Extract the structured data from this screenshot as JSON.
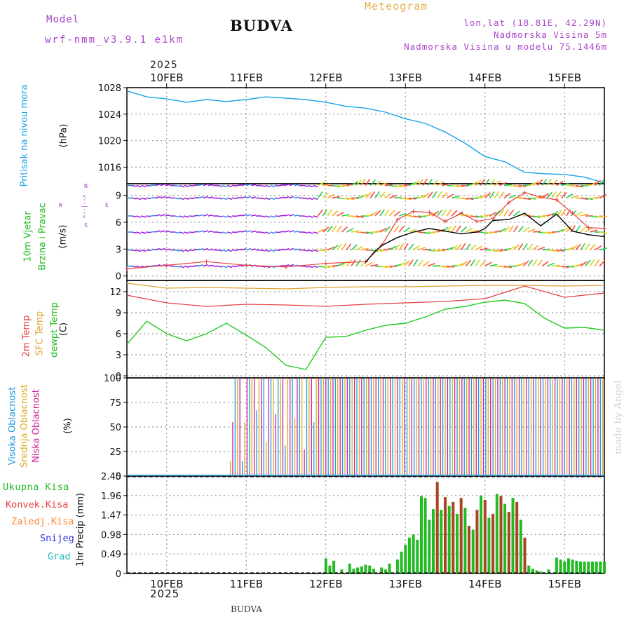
{
  "header": {
    "model_label": "Model",
    "model_name": "wrf-nmm_v3.9.1 e1km",
    "station": "BUDVA",
    "meteogram": "Meteogram",
    "lonlat": "lon,lat (18.81E, 42.29N)",
    "altitude": "Nadmorska Visina 5m",
    "model_altitude": "Nadmorska Visina u modelu 75.1446m"
  },
  "top_axis": {
    "year": "2025"
  },
  "bottom_axis": {
    "year": "2025",
    "footer_station": "BUDVA"
  },
  "watermark": "made by Angel",
  "panel_labels": {
    "pressure": {
      "title": "Pritisak na nivou mora",
      "unit": "(hPa)"
    },
    "wind": {
      "line1": "10m Vjetar",
      "line2": "Brzina i Pravac",
      "unit": "(m/s)",
      "compass_n": "N",
      "compass_w": "W",
      "compass_e": "E",
      "compass_s": "S",
      "compass_arrows_top": "<--|-->",
      "compass_arrows_bottom": "<--|-->"
    },
    "temp": {
      "t2m": "2m Temp",
      "sfc": "SFC Temp",
      "dew": "dewpt Temp",
      "unit": "(C)"
    },
    "cloud": {
      "high": "Visoka Oblacnost",
      "mid": "Srednja Oblacnost",
      "low": "Niska Oblacnost",
      "unit": "(%)"
    },
    "precip": {
      "total": "Ukupna Kisa",
      "conv": "Konvek.Kisa",
      "frz": "Zaledj.Kisa",
      "snow": "Snijeg",
      "grad": "Grad",
      "unit": "1hr Precip (mm)"
    }
  },
  "colors": {
    "pressure": "#1aa3e8",
    "t2m": "#e84040",
    "sfc": "#e0a030",
    "dew": "#22cc22",
    "wind_speed": "#000000",
    "gust": "#e84040",
    "high_cloud": "#2299dd",
    "mid_cloud": "#ddaa22",
    "low_cloud": "#cc2299",
    "precip_total": "#22bb22",
    "precip_conv": "#aa4422",
    "label_total": "#22bb22",
    "label_conv": "#e84040",
    "label_frz": "#ff8833",
    "label_snow": "#3333dd",
    "label_grad": "#22bbbb",
    "model_text": "#aa44cc",
    "meteogram_text": "#e8b050",
    "info_text": "#aa44cc"
  },
  "chart_data": [
    {
      "type": "line",
      "panel": "pressure",
      "x_unit": "day (fractional, from 2025-02-09 12:00)",
      "x_ticks": [
        "10FEB",
        "11FEB",
        "12FEB",
        "13FEB",
        "14FEB",
        "15FEB"
      ],
      "ylim": [
        1013.5,
        1028
      ],
      "y_ticks": [
        1016,
        1020,
        1024,
        1028
      ],
      "series": [
        {
          "x": [
            0,
            0.25,
            0.5,
            0.75,
            1.0,
            1.25,
            1.5,
            1.75,
            2.0,
            2.25,
            2.5,
            2.75,
            3.0,
            3.25,
            3.5,
            3.75,
            4.0,
            4.25,
            4.5,
            4.75,
            5.0,
            5.25,
            5.5,
            5.75,
            6.0
          ],
          "values": [
            1027.5,
            1026.6,
            1026.3,
            1025.8,
            1026.2,
            1025.9,
            1026.2,
            1026.6,
            1026.4,
            1026.2,
            1025.8,
            1025.2,
            1024.9,
            1024.3,
            1023.3,
            1022.6,
            1021.3,
            1019.6,
            1017.6,
            1016.8,
            1015.2,
            1015.0,
            1014.9,
            1014.5,
            1013.6
          ]
        }
      ]
    },
    {
      "type": "line",
      "panel": "wind",
      "ylim": [
        -0.5,
        10.3
      ],
      "y_ticks": [
        0,
        3,
        6,
        9
      ],
      "series": [
        {
          "name": "wind speed",
          "x": [
            3.0,
            3.1,
            3.2,
            3.4,
            3.6,
            3.8,
            4.0,
            4.2,
            4.4,
            4.5,
            4.6,
            4.8,
            5.0,
            5.2,
            5.4,
            5.6,
            5.8,
            6.0
          ],
          "values": [
            1.5,
            2.6,
            3.4,
            4.3,
            4.9,
            5.3,
            5.0,
            4.7,
            4.9,
            5.3,
            6.2,
            6.3,
            7.0,
            5.6,
            6.9,
            5.0,
            4.6,
            4.4
          ]
        },
        {
          "name": "gust",
          "x": [
            0,
            0.5,
            1.0,
            1.5,
            2.0,
            2.5,
            3.0,
            3.2,
            3.4,
            3.6,
            3.8,
            4.0,
            4.2,
            4.4,
            4.6,
            4.8,
            5.0,
            5.2,
            5.4,
            5.6,
            5.8,
            6.0
          ],
          "values": [
            0.8,
            1.2,
            1.6,
            1.2,
            1.0,
            1.4,
            1.6,
            3.4,
            6.3,
            7.2,
            7.1,
            6.1,
            7.0,
            6.1,
            6.4,
            8.2,
            9.3,
            8.8,
            8.5,
            7.0,
            5.4,
            5.3
          ]
        }
      ]
    },
    {
      "type": "line",
      "panel": "temperature",
      "ylim": [
        -0.3,
        13.6
      ],
      "y_ticks": [
        0,
        3,
        6,
        9,
        12
      ],
      "series": [
        {
          "name": "2m Temp",
          "x": [
            0,
            0.5,
            1.0,
            1.5,
            2.0,
            2.5,
            3.0,
            3.5,
            4.0,
            4.5,
            5.0,
            5.5,
            6.0
          ],
          "values": [
            11.5,
            10.4,
            9.9,
            10.2,
            10.1,
            9.9,
            10.2,
            10.4,
            10.6,
            11.0,
            12.8,
            11.2,
            11.8
          ]
        },
        {
          "name": "SFC Temp",
          "x": [
            0,
            0.5,
            1.0,
            1.5,
            2.0,
            2.5,
            3.0,
            3.5,
            4.0,
            4.5,
            5.0,
            5.5,
            6.0
          ],
          "values": [
            13.2,
            12.5,
            12.6,
            12.5,
            12.4,
            12.6,
            12.7,
            12.7,
            12.8,
            12.9,
            12.9,
            12.8,
            12.9
          ]
        },
        {
          "name": "dewpt Temp",
          "x": [
            0,
            0.25,
            0.5,
            0.75,
            1.0,
            1.25,
            1.5,
            1.75,
            2.0,
            2.25,
            2.5,
            2.75,
            3.0,
            3.25,
            3.5,
            3.75,
            4.0,
            4.25,
            4.5,
            4.75,
            5.0,
            5.25,
            5.5,
            5.75,
            6.0
          ],
          "values": [
            4.5,
            7.8,
            6.0,
            5.0,
            6.0,
            7.5,
            5.8,
            4.0,
            1.5,
            0.9,
            5.5,
            5.6,
            6.5,
            7.2,
            7.5,
            8.4,
            9.5,
            9.9,
            10.5,
            10.8,
            10.3,
            8.2,
            6.8,
            6.9,
            6.5
          ]
        }
      ]
    },
    {
      "type": "bar",
      "panel": "cloud cover",
      "ylim": [
        0,
        100
      ],
      "y_ticks": [
        0,
        25,
        50,
        75,
        100
      ],
      "series": [
        {
          "name": "Visoka Oblacnost",
          "description_of_values": "mostly 0 until 12FEB, then ~100 in intermittent bars"
        },
        {
          "name": "Srednja Oblacnost",
          "description_of_values": "~100 from late 10FEB onward, intermittent"
        },
        {
          "name": "Niska Oblacnost",
          "description_of_values": "~100 intermittent bars from 12FEB onward"
        }
      ]
    },
    {
      "type": "bar",
      "panel": "precipitation",
      "ylim": [
        0,
        2.45
      ],
      "y_ticks": [
        0,
        0.49,
        0.98,
        1.47,
        1.96,
        2.45
      ],
      "series": [
        {
          "name": "Ukupna Kisa",
          "x": [
            2.5,
            2.55,
            2.6,
            2.7,
            2.8,
            2.85,
            2.9,
            2.95,
            3.0,
            3.05,
            3.1,
            3.2,
            3.25,
            3.3,
            3.4,
            3.45,
            3.5,
            3.55,
            3.6,
            3.65,
            3.7,
            3.75,
            3.8,
            3.85,
            3.9,
            3.95,
            4.0,
            4.05,
            4.1,
            4.15,
            4.2,
            4.25,
            4.3,
            4.35,
            4.4,
            4.45,
            4.5,
            4.55,
            4.6,
            4.65,
            4.7,
            4.75,
            4.8,
            4.85,
            4.9,
            4.95,
            5.0,
            5.05,
            5.1,
            5.15,
            5.2,
            5.3,
            5.4,
            5.45,
            5.5,
            5.55,
            5.6,
            5.65,
            5.7,
            5.75,
            5.8,
            5.85,
            5.9,
            5.95,
            6.0
          ],
          "values": [
            0.38,
            0.2,
            0.32,
            0.1,
            0.25,
            0.12,
            0.15,
            0.18,
            0.22,
            0.2,
            0.12,
            0.15,
            0.1,
            0.25,
            0.35,
            0.55,
            0.72,
            0.9,
            0.98,
            0.85,
            1.95,
            1.9,
            1.35,
            1.62,
            2.3,
            1.6,
            1.92,
            1.7,
            1.8,
            1.5,
            1.9,
            1.65,
            1.2,
            1.1,
            1.6,
            1.96,
            1.85,
            1.4,
            1.5,
            2.0,
            1.95,
            1.75,
            1.55,
            1.9,
            1.8,
            1.35,
            0.9,
            0.2,
            0.12,
            0.08,
            0.05,
            0.1,
            0.4,
            0.35,
            0.3,
            0.38,
            0.35,
            0.32,
            0.3,
            0.3,
            0.3,
            0.3,
            0.3,
            0.3,
            0.3
          ]
        }
      ]
    }
  ]
}
